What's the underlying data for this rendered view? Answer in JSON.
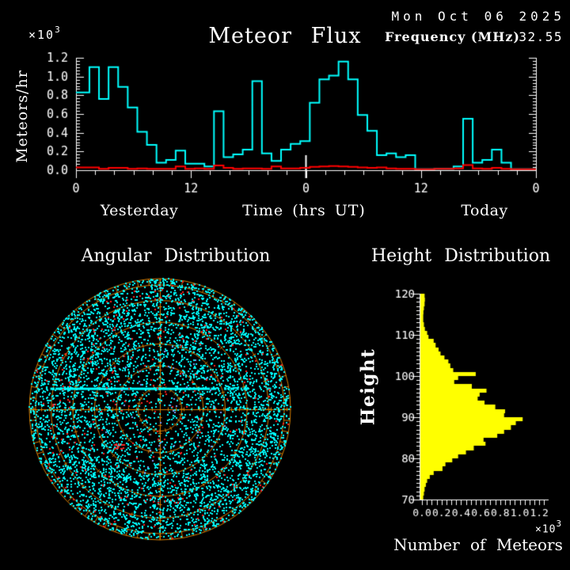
{
  "header": {
    "date": "Mon Oct 06 2025",
    "frequency_label": "Frequency (MHz)",
    "frequency_value": "32.55"
  },
  "chart_data": [
    {
      "type": "line",
      "id": "flux",
      "title": "Meteor Flux",
      "ylabel": "Meteors/hr",
      "y_scale_base": "×10",
      "y_scale_exp": "3",
      "xlabel": "Time (hrs UT)",
      "x_period_labels": [
        "Yesterday",
        "Today"
      ],
      "x_tick_hours": [
        0,
        12,
        24,
        36,
        48
      ],
      "x_tick_labels": [
        "0",
        "12",
        "0",
        "12",
        "0"
      ],
      "y_tick_labels": [
        "0.0",
        "0.2",
        "0.4",
        "0.6",
        "0.8",
        "1.0",
        "1.2"
      ],
      "ylim": [
        0,
        1.2
      ],
      "xlim_hours": [
        0,
        48
      ],
      "bin_hours": 1,
      "grid": false,
      "midnight_marker_hour": 24,
      "series": [
        {
          "name": "meteor flux (thousands/hr)",
          "color": "#00FFFF",
          "values": [
            0.83,
            1.1,
            0.76,
            1.1,
            0.89,
            0.67,
            0.41,
            0.27,
            0.08,
            0.11,
            0.21,
            0.07,
            0.07,
            0.04,
            0.63,
            0.14,
            0.17,
            0.22,
            0.95,
            0.18,
            0.1,
            0.22,
            0.28,
            0.31,
            0.72,
            0.97,
            1.01,
            1.16,
            0.97,
            0.59,
            0.42,
            0.16,
            0.18,
            0.14,
            0.16,
            0.01,
            0.01,
            0.015,
            0.015,
            0.04,
            0.55,
            0.08,
            0.11,
            0.22,
            0.08,
            0.01,
            0.01,
            0.01
          ]
        },
        {
          "name": "background level",
          "color": "#FF0000",
          "values": [
            0.03,
            0.03,
            0.015,
            0.025,
            0.025,
            0.015,
            0.02,
            0.015,
            0.015,
            0.015,
            0.04,
            0.015,
            0.02,
            0.015,
            0.05,
            0.025,
            0.015,
            0.02,
            0.02,
            0.015,
            0.04,
            0.02,
            0.02,
            0.025,
            0.035,
            0.04,
            0.045,
            0.04,
            0.035,
            0.03,
            0.025,
            0.03,
            0.02,
            0.015,
            0.015,
            0.01,
            0.01,
            0.015,
            0.015,
            0.02,
            0.055,
            0.02,
            0.015,
            0.025,
            0.015,
            0.01,
            0.01,
            0.01
          ]
        }
      ]
    },
    {
      "type": "scatter",
      "id": "angular",
      "title": "Angular Distribution",
      "projection": "polar",
      "ring_color": "#D97F00",
      "ring_radii_fraction": [
        0.167,
        0.333,
        0.5,
        0.667,
        0.833,
        0.952,
        1.0
      ],
      "point_color_primary": "#00FFFF",
      "point_color_secondary": "#FF2020",
      "point_color_tertiary": "#7A9BFF",
      "point_counts": {
        "primary": 5500,
        "secondary": 270,
        "tertiary": 40
      },
      "density_note": "sparse near zenith (center), dense toward horizon annulus",
      "features": {
        "horizontal_echo_streak": true,
        "streak_offset_fraction": -0.16
      }
    },
    {
      "type": "bar",
      "id": "height",
      "title": "Height Distribution",
      "orientation": "horizontal",
      "ylabel": "Height",
      "xlabel": "Number of Meteors",
      "x_scale_base": "×10",
      "x_scale_exp": "3",
      "bar_color": "#FFFF00",
      "ylim": [
        70,
        120
      ],
      "xlim": [
        0,
        1.2
      ],
      "y_tick_labels": [
        "70",
        "80",
        "90",
        "100",
        "110",
        "120"
      ],
      "x_tick_labels": [
        "0.0",
        "0.2",
        "0.4",
        "0.6",
        "0.8",
        "1.0",
        "1.2"
      ],
      "bin_km": 1,
      "height_start_km": 70,
      "values": [
        0.013,
        0.02,
        0.027,
        0.04,
        0.053,
        0.08,
        0.12,
        0.21,
        0.24,
        0.31,
        0.37,
        0.45,
        0.53,
        0.65,
        0.63,
        0.77,
        0.84,
        0.91,
        0.96,
        1.03,
        0.84,
        0.85,
        0.75,
        0.64,
        0.57,
        0.59,
        0.66,
        0.51,
        0.33,
        0.37,
        0.55,
        0.32,
        0.29,
        0.27,
        0.23,
        0.19,
        0.17,
        0.14,
        0.12,
        0.067,
        0.053,
        0.03,
        0.02,
        0.013,
        0.013,
        0.015,
        0.02,
        0.027,
        0.03,
        0.027
      ]
    }
  ]
}
